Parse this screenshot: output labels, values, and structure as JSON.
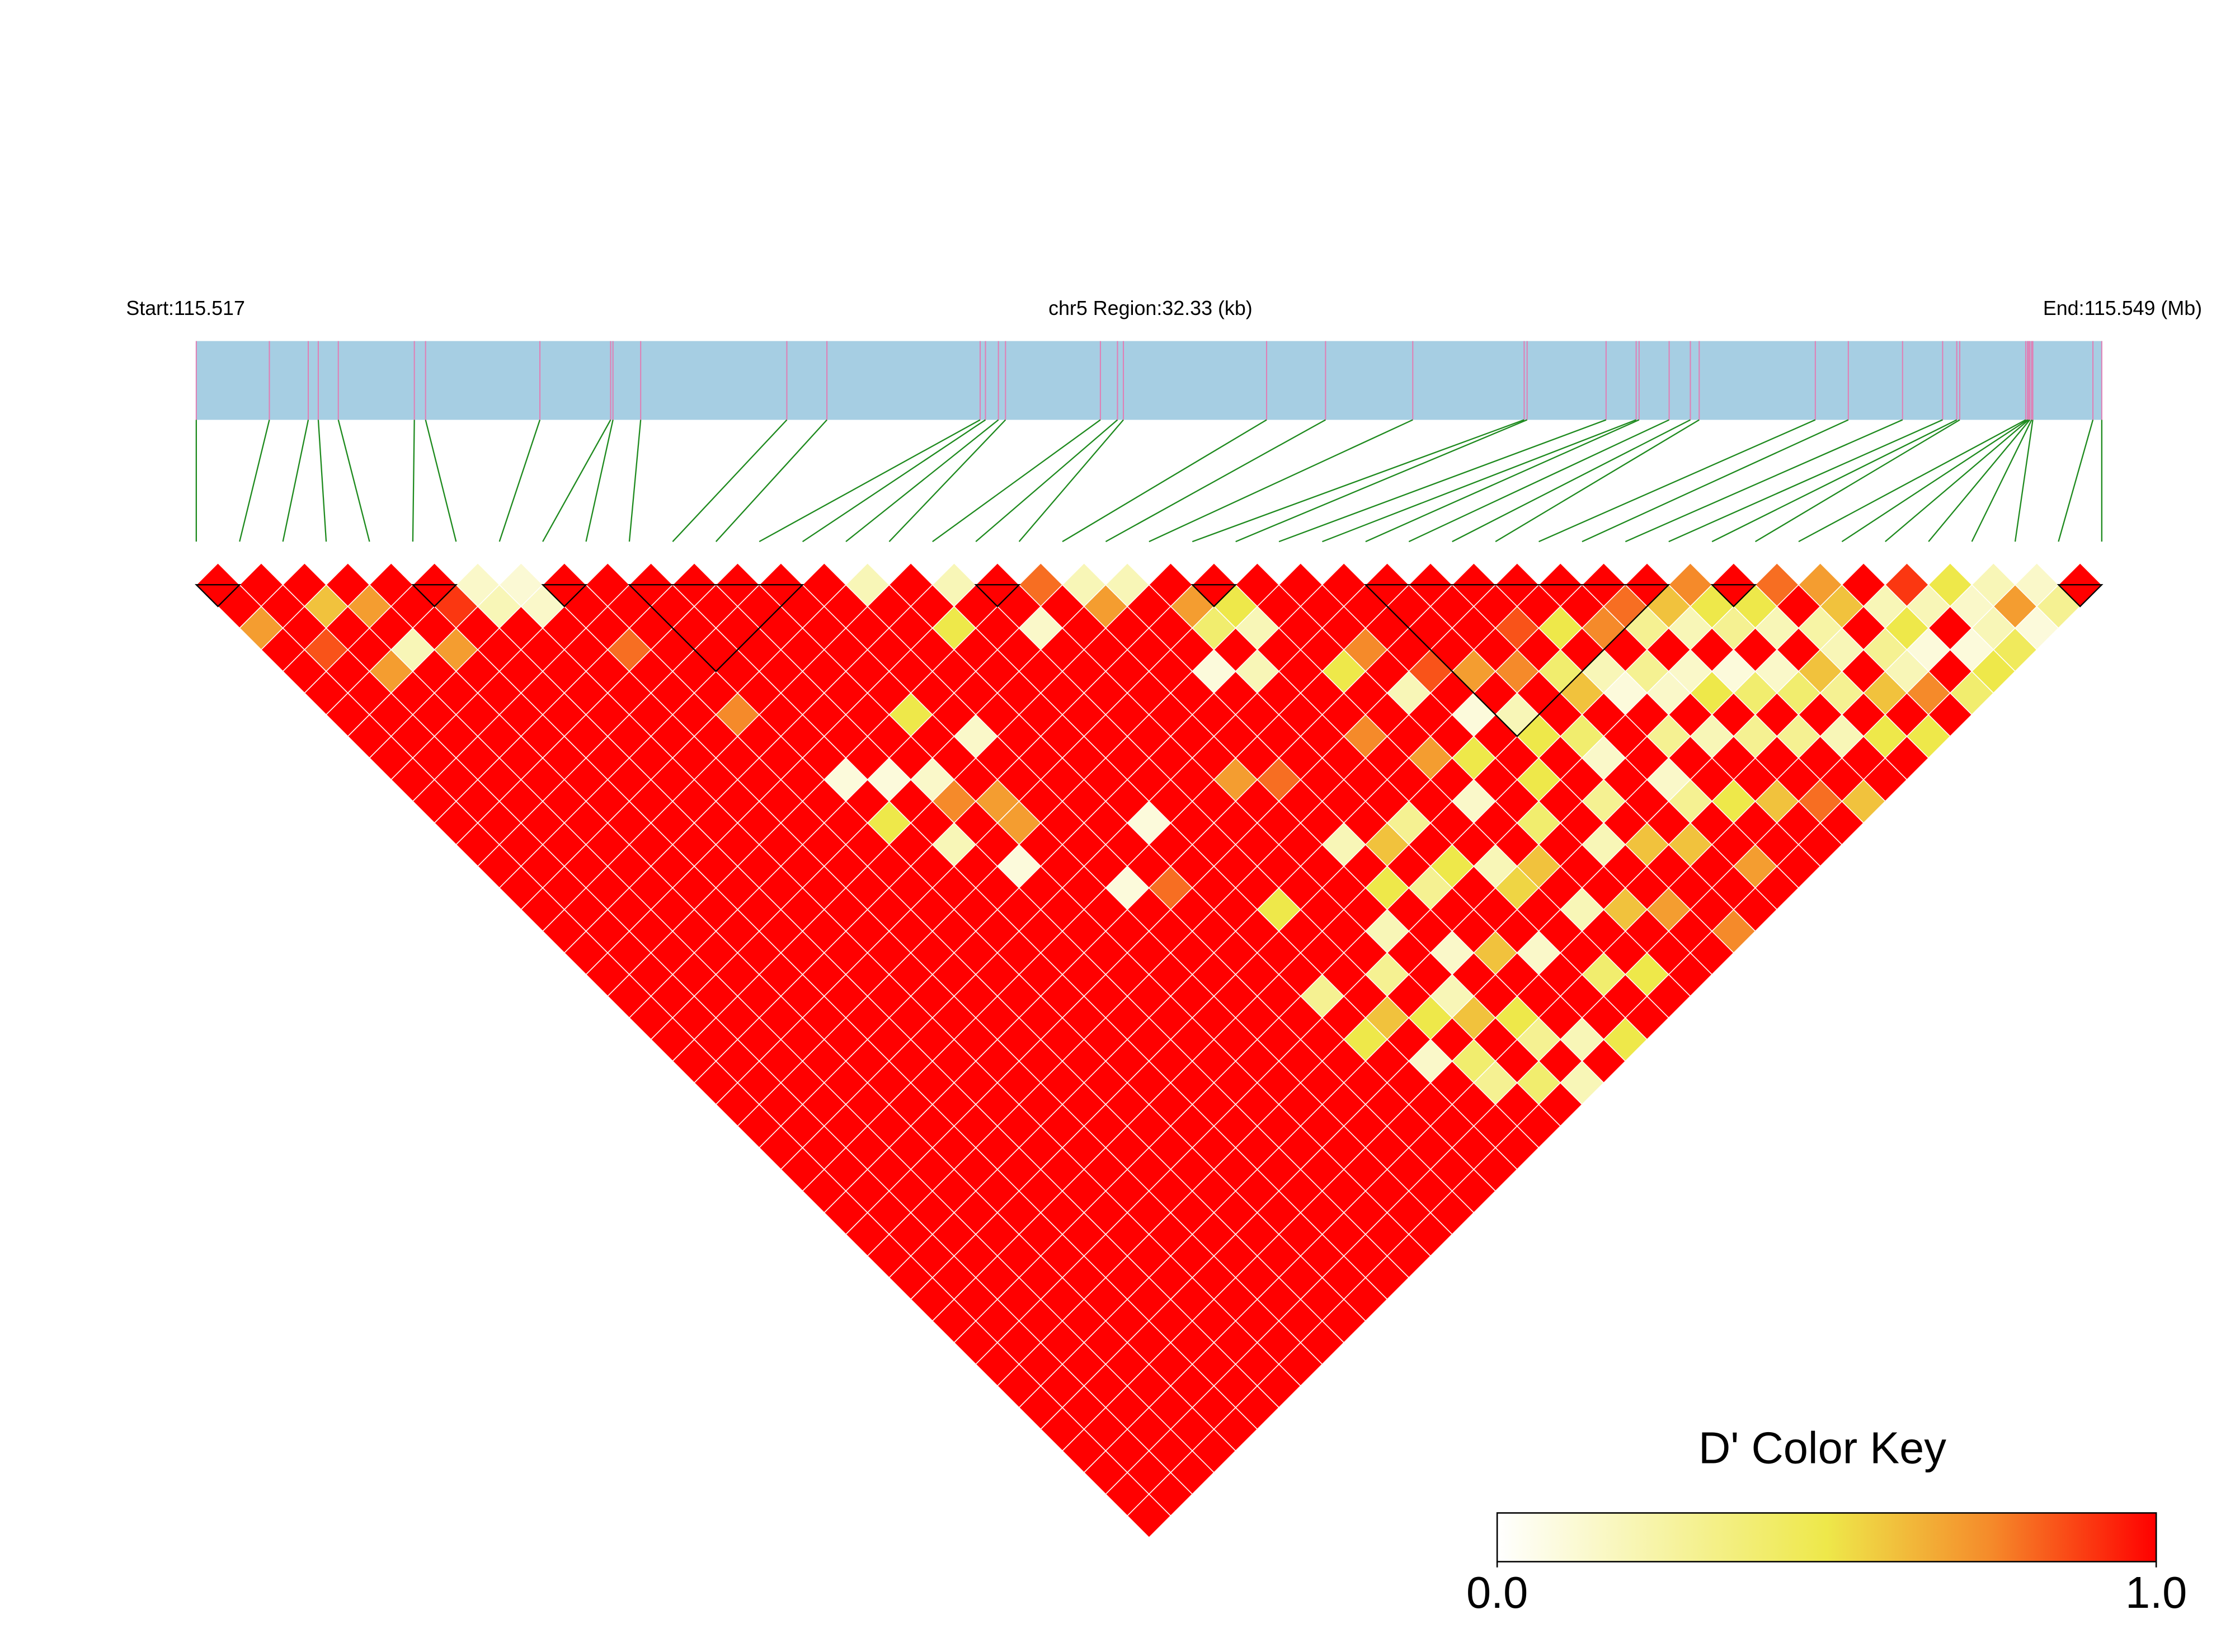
{
  "chart_data": {
    "type": "ld_heatmap",
    "start_label": "Start:115.517",
    "region_label": "chr5 Region:32.33 (kb)",
    "end_label": "End:115.549 (Mb)",
    "xlim": [
      115.517,
      115.54933
    ],
    "bar_color": "#a6cee3",
    "snp_line_color": "#e07fb5",
    "connector_color": "#1e8a1e",
    "snp_positions": [
      115.517,
      115.51824,
      115.5189,
      115.51907,
      115.51941,
      115.5207,
      115.52089,
      115.52283,
      115.52403,
      115.52407,
      115.52454,
      115.52702,
      115.5277,
      115.5303,
      115.53039,
      115.53061,
      115.53073,
      115.53234,
      115.53263,
      115.53273,
      115.53516,
      115.53616,
      115.53764,
      115.53953,
      115.53958,
      115.54092,
      115.54143,
      115.54148,
      115.54199,
      115.54235,
      115.5425,
      115.54447,
      115.54503,
      115.54595,
      115.54663,
      115.54687,
      115.54692,
      115.54804,
      115.54807,
      115.54809,
      115.54811,
      115.54814,
      115.54816,
      115.54918,
      115.54933
    ],
    "dprime": [
      [
        1,
        1,
        0.7,
        1,
        1,
        1,
        1,
        1,
        1,
        1,
        1,
        1,
        1,
        1,
        1,
        1,
        1,
        1,
        1,
        1,
        1,
        1,
        1,
        1,
        1,
        1,
        1,
        1,
        1,
        1,
        1,
        1,
        1,
        1,
        1,
        1,
        1,
        1,
        1,
        1,
        1,
        1,
        1,
        1
      ],
      [
        1,
        1,
        1,
        0.85,
        1,
        1,
        1,
        1,
        1,
        1,
        1,
        1,
        1,
        1,
        1,
        1,
        1,
        1,
        1,
        1,
        1,
        1,
        1,
        1,
        1,
        1,
        1,
        1,
        1,
        1,
        1,
        1,
        1,
        1,
        1,
        1,
        1,
        1,
        1,
        1,
        1,
        1,
        1
      ],
      [
        1,
        0.6,
        1,
        1,
        0.7,
        1,
        1,
        1,
        1,
        1,
        1,
        1,
        1,
        1,
        1,
        1,
        1,
        1,
        1,
        1,
        1,
        1,
        1,
        1,
        1,
        1,
        1,
        1,
        1,
        1,
        1,
        1,
        1,
        1,
        1,
        1,
        1,
        1,
        1,
        1,
        1,
        1
      ],
      [
        1,
        0.7,
        1,
        0.2,
        1,
        1,
        1,
        1,
        1,
        1,
        1,
        1,
        1,
        1,
        1,
        1,
        1,
        1,
        1,
        1,
        1,
        1,
        1,
        1,
        1,
        1,
        1,
        1,
        1,
        1,
        1,
        1,
        1,
        1,
        1,
        1,
        1,
        1,
        1,
        1,
        1
      ],
      [
        1,
        1,
        1,
        0.7,
        1,
        1,
        1,
        1,
        1,
        1,
        1,
        1,
        1,
        1,
        1,
        1,
        1,
        1,
        1,
        1,
        1,
        1,
        1,
        1,
        1,
        1,
        1,
        1,
        1,
        1,
        1,
        1,
        1,
        1,
        1,
        1,
        1,
        1,
        1,
        1
      ],
      [
        1,
        0.9,
        1,
        1,
        1,
        1,
        1,
        1,
        1,
        1,
        1,
        1,
        1,
        1,
        1,
        1,
        1,
        1,
        1,
        1,
        1,
        1,
        1,
        1,
        1,
        1,
        1,
        1,
        1,
        1,
        1,
        1,
        1,
        1,
        1,
        1,
        1,
        1,
        1
      ],
      [
        0.15,
        0.2,
        1,
        1,
        1,
        1,
        1,
        1,
        1,
        1,
        1,
        1,
        1,
        1,
        1,
        1,
        1,
        1,
        1,
        1,
        1,
        1,
        1,
        1,
        1,
        1,
        1,
        1,
        1,
        1,
        1,
        1,
        1,
        1,
        1,
        1,
        1,
        1
      ],
      [
        0.12,
        0.15,
        1,
        1,
        1,
        1,
        1,
        1,
        1,
        1,
        1,
        1,
        1,
        1,
        1,
        1,
        1,
        1,
        1,
        1,
        1,
        1,
        1,
        1,
        1,
        1,
        1,
        1,
        1,
        1,
        1,
        1,
        1,
        1,
        1,
        1,
        1
      ],
      [
        1,
        1,
        1,
        0.8,
        1,
        1,
        1,
        1,
        1,
        1,
        1,
        1,
        1,
        1,
        1,
        1,
        1,
        1,
        1,
        1,
        1,
        1,
        1,
        1,
        1,
        1,
        1,
        1,
        1,
        1,
        1,
        1,
        1,
        1,
        1,
        1
      ],
      [
        1,
        1,
        1,
        1,
        1,
        1,
        0.75,
        1,
        1,
        1,
        1,
        1,
        1,
        1,
        1,
        1,
        1,
        1,
        1,
        1,
        1,
        1,
        1,
        1,
        1,
        1,
        1,
        1,
        1,
        1,
        1,
        1,
        1,
        1,
        1
      ],
      [
        1,
        1,
        1,
        1,
        1,
        1,
        1,
        1,
        1,
        0.1,
        1,
        0.5,
        1,
        1,
        1,
        1,
        1,
        1,
        1,
        1,
        1,
        1,
        1,
        1,
        1,
        1,
        1,
        1,
        1,
        1,
        1,
        1,
        1,
        1
      ],
      [
        1,
        1,
        1,
        1,
        1,
        1,
        1,
        1,
        1,
        0.1,
        1,
        1,
        0.2,
        1,
        1,
        1,
        1,
        1,
        1,
        1,
        1,
        1,
        1,
        1,
        1,
        1,
        1,
        1,
        1,
        1,
        1,
        1,
        1
      ],
      [
        1,
        1,
        1,
        1,
        1,
        1,
        1,
        1,
        1,
        0.15,
        0.75,
        1,
        1,
        0.1,
        1,
        1,
        1,
        1,
        1,
        1,
        1,
        1,
        1,
        1,
        1,
        1,
        1,
        1,
        1,
        1,
        1,
        1
      ],
      [
        1,
        1,
        1,
        1,
        1,
        1,
        0.5,
        1,
        1,
        1,
        0.7,
        0.7,
        1,
        1,
        1,
        1,
        1,
        1,
        1,
        1,
        1,
        1,
        1,
        1,
        1,
        1,
        1,
        1,
        1,
        1,
        1
      ],
      [
        1,
        1,
        1,
        1,
        1,
        1,
        1,
        0.15,
        1,
        1,
        1,
        1,
        1,
        1,
        0.1,
        1,
        1,
        1,
        1,
        1,
        1,
        1,
        1,
        1,
        1,
        1,
        1,
        1,
        1,
        1
      ],
      [
        0.2,
        1,
        1,
        1,
        1,
        1,
        1,
        1,
        1,
        1,
        1,
        1,
        1,
        1,
        0.8,
        1,
        1,
        1,
        1,
        1,
        1,
        1,
        1,
        1,
        1,
        1,
        1,
        1,
        1
      ],
      [
        1,
        1,
        0.5,
        1,
        1,
        1,
        1,
        1,
        1,
        1,
        1,
        0.1,
        1,
        1,
        1,
        1,
        1,
        1,
        1,
        0.3,
        1,
        0.5,
        1,
        1,
        1,
        1,
        1,
        1
      ],
      [
        0.2,
        1,
        1,
        1,
        1,
        1,
        1,
        1,
        1,
        1,
        1,
        1,
        1,
        1,
        1,
        0.5,
        1,
        1,
        1,
        1,
        0.6,
        1,
        0.15,
        1,
        1,
        1,
        1
      ],
      [
        1,
        1,
        0.15,
        1,
        1,
        1,
        1,
        1,
        1,
        1,
        1,
        1,
        1,
        1,
        1,
        1,
        1,
        1,
        0.3,
        1,
        0.5,
        1,
        0.4,
        0.3,
        1,
        1
      ],
      [
        0.8,
        1,
        1,
        1,
        1,
        1,
        1,
        1,
        1,
        0.7,
        1,
        1,
        1,
        1,
        1,
        1,
        0.2,
        1,
        1,
        0.2,
        0.6,
        1,
        1,
        0.4,
        1
      ],
      [
        0.2,
        0.7,
        1,
        1,
        1,
        1,
        1,
        1,
        1,
        0.8,
        1,
        1,
        0.2,
        1,
        0.5,
        1,
        1,
        0.15,
        1,
        1,
        0.5,
        0.3,
        1,
        0.2
      ],
      [
        0.2,
        1,
        1,
        1,
        0.1,
        1,
        1,
        1,
        1,
        1,
        1,
        1,
        0.6,
        1,
        0.3,
        1,
        1,
        0.6,
        1,
        1,
        1,
        0.2,
        1
      ],
      [
        1,
        0.7,
        0.4,
        1,
        0.2,
        1,
        1,
        1,
        1,
        1,
        1,
        0.3,
        1,
        0.5,
        1,
        1,
        1,
        0.15,
        1,
        1,
        1,
        0.5
      ],
      [
        1,
        0.5,
        0.2,
        1,
        1,
        1,
        1,
        0.75,
        1,
        1,
        1,
        1,
        1,
        0.2,
        0.55,
        1,
        1,
        1,
        0.4,
        1,
        1
      ],
      [
        1,
        1,
        1,
        1,
        0.5,
        1,
        1,
        1,
        0.7,
        1,
        0.15,
        1,
        1,
        0.6,
        1,
        0.2,
        1,
        1,
        0.5,
        1
      ],
      [
        1,
        1,
        1,
        0.75,
        1,
        0.2,
        1,
        1,
        0.5,
        1,
        1,
        0.4,
        1,
        1,
        1,
        0.6,
        1,
        1,
        1
      ],
      [
        1,
        1,
        1,
        1,
        0.85,
        1,
        0.1,
        1,
        1,
        0.5,
        1,
        1,
        0.2,
        1,
        1,
        0.7,
        1,
        1
      ],
      [
        1,
        1,
        1,
        1,
        0.7,
        1,
        0.2,
        0.5,
        1,
        1,
        0.3,
        1,
        0.6,
        1,
        1,
        1,
        0.75
      ],
      [
        1,
        1,
        1,
        1,
        0.75,
        1,
        1,
        0.4,
        0.15,
        1,
        1,
        1,
        0.6,
        1,
        1,
        1
      ],
      [
        1,
        1,
        0.85,
        1,
        0.4,
        0.6,
        1,
        1,
        1,
        0.15,
        0.3,
        1,
        1,
        0.7,
        1
      ],
      [
        1,
        1,
        0.5,
        1,
        0.2,
        0.1,
        1,
        0.3,
        1,
        1,
        0.5,
        1,
        1,
        1
      ],
      [
        1,
        1,
        0.75,
        1,
        0.3,
        0.15,
        1,
        0.2,
        1,
        1,
        0.6,
        1,
        1
      ],
      [
        1,
        0.8,
        0.3,
        1,
        0.15,
        0.5,
        1,
        0.3,
        1,
        1,
        0.8,
        1
      ],
      [
        1,
        0.6,
        0.2,
        1,
        0.1,
        0.4,
        1,
        0.3,
        1,
        1,
        0.6
      ],
      [
        0.75,
        0.5,
        0.3,
        1,
        0.15,
        0.4,
        1,
        0.2,
        1,
        1
      ],
      [
        1,
        0.5,
        0.2,
        1,
        0.6,
        0.3,
        1,
        0.5,
        1
      ],
      [
        0.8,
        1,
        0.25,
        0.2,
        1,
        0.6,
        1,
        0.5
      ],
      [
        0.7,
        0.6,
        1,
        0.3,
        0.2,
        0.75,
        1
      ],
      [
        1,
        0.2,
        0.5,
        0.1,
        1,
        0.4
      ],
      [
        0.9,
        0.2,
        1,
        0.1,
        0.5
      ],
      [
        0.5,
        0.15,
        0.2,
        0.45
      ],
      [
        0.2,
        0.7,
        0.1
      ],
      [
        0.15,
        0.3
      ],
      [
        1
      ]
    ],
    "blocks": [
      [
        0,
        1
      ],
      [
        5,
        6
      ],
      [
        8,
        9
      ],
      [
        10,
        14
      ],
      [
        18,
        19
      ],
      [
        23,
        24
      ],
      [
        27,
        34
      ],
      [
        35,
        36
      ],
      [
        43,
        44
      ]
    ],
    "colorscale": [
      [
        0,
        "#ffffff"
      ],
      [
        0.5,
        "#eee84a"
      ],
      [
        0.75,
        "#f58a2a"
      ],
      [
        1,
        "#ff0000"
      ]
    ],
    "colorkey_title": "D' Color Key",
    "clim": [
      0,
      1
    ],
    "cticks": [
      {
        "value": 0,
        "label": "0.0"
      },
      {
        "value": 1,
        "label": "1.0"
      }
    ]
  }
}
